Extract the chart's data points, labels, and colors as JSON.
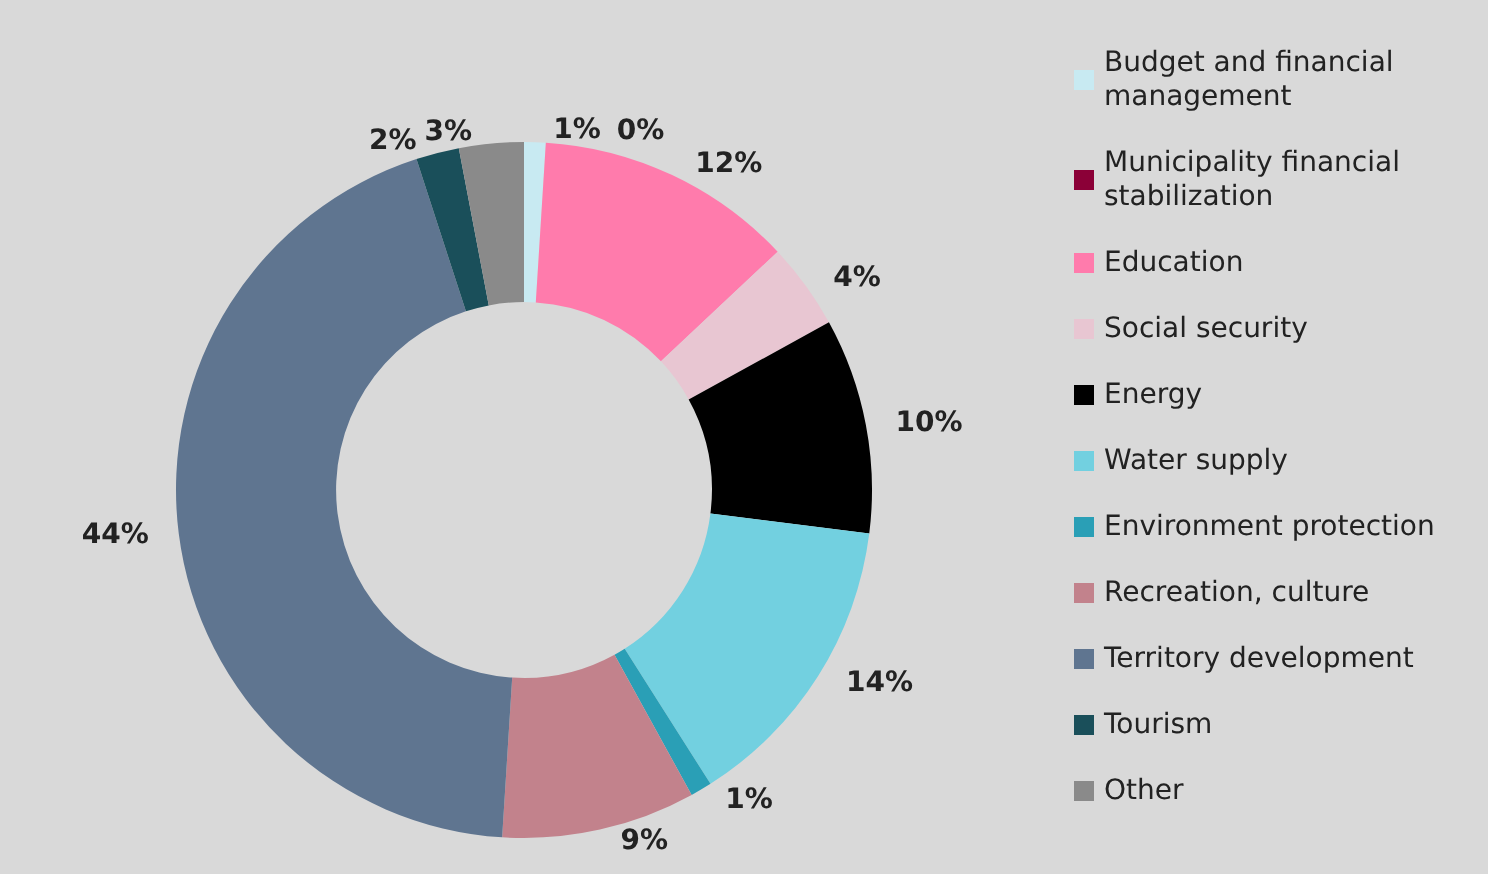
{
  "chart_data": {
    "type": "donut",
    "categories": [
      "Budget and financial management",
      "Municipality financial stabilization",
      "Education",
      "Social security",
      "Energy",
      "Water supply",
      "Environment protection",
      "Recreation, culture",
      "Territory development",
      "Tourism",
      "Other"
    ],
    "values": [
      1,
      0,
      12,
      4,
      10,
      14,
      1,
      9,
      44,
      2,
      3
    ],
    "value_labels": [
      "1%",
      "0%",
      "12%",
      "4%",
      "10%",
      "14%",
      "1%",
      "9%",
      "44%",
      "2%",
      "3%"
    ],
    "colors": [
      "#c8eaf2",
      "#8b0037",
      "#ff7bac",
      "#e8c6d2",
      "#000000",
      "#72d0e0",
      "#2a9fb6",
      "#c2828c",
      "#5f7590",
      "#1a4f5a",
      "#8a8a8a"
    ],
    "legend": "right"
  }
}
